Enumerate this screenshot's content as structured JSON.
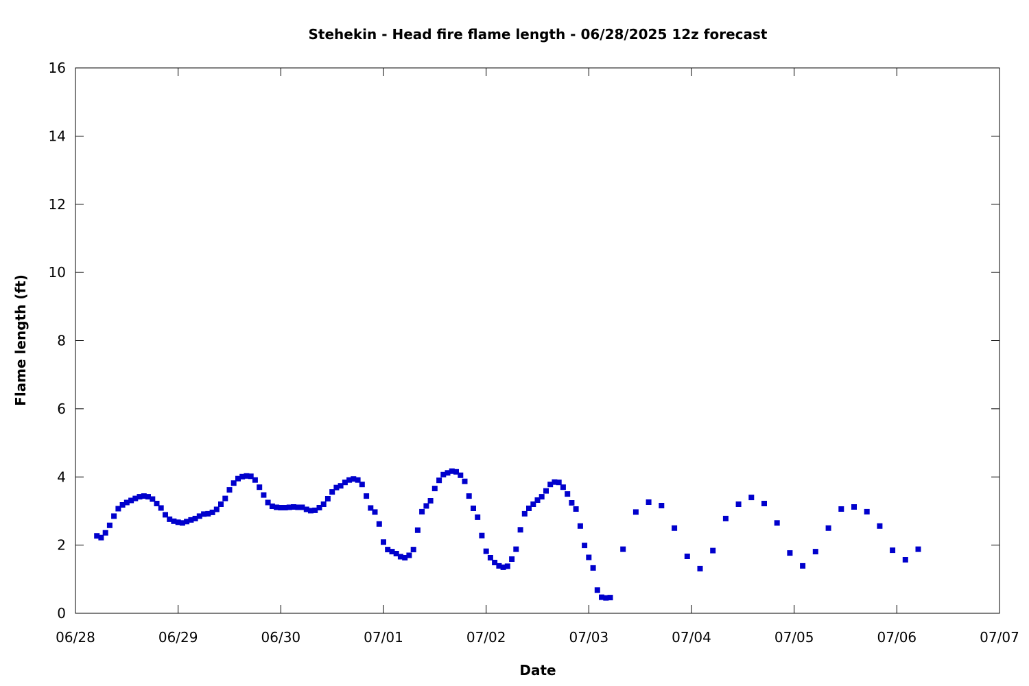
{
  "chart_data": {
    "type": "scatter",
    "title": "Stehekin - Head fire flame length - 06/28/2025 12z forecast",
    "xlabel": "Date",
    "ylabel": "Flame length (ft)",
    "xlim": [
      "06/28",
      "07/07"
    ],
    "ylim": [
      0,
      16
    ],
    "x_ticks": [
      "06/28",
      "06/29",
      "06/30",
      "07/01",
      "07/02",
      "07/03",
      "07/04",
      "07/05",
      "07/06",
      "07/07"
    ],
    "y_ticks": [
      "0",
      "2",
      "4",
      "6",
      "8",
      "10",
      "12",
      "14",
      "16"
    ],
    "grid": false,
    "marker_color": "#0000cc",
    "series": [
      {
        "x": [
          "2025-06-28T05:00",
          "2025-06-28T06:00",
          "2025-06-28T07:00",
          "2025-06-28T08:00",
          "2025-06-28T09:00",
          "2025-06-28T10:00",
          "2025-06-28T11:00",
          "2025-06-28T12:00",
          "2025-06-28T13:00",
          "2025-06-28T14:00",
          "2025-06-28T15:00",
          "2025-06-28T16:00",
          "2025-06-28T17:00",
          "2025-06-28T18:00",
          "2025-06-28T19:00",
          "2025-06-28T20:00",
          "2025-06-28T21:00",
          "2025-06-28T22:00",
          "2025-06-28T23:00",
          "2025-06-29T00:00",
          "2025-06-29T01:00",
          "2025-06-29T02:00",
          "2025-06-29T03:00",
          "2025-06-29T04:00",
          "2025-06-29T05:00",
          "2025-06-29T06:00",
          "2025-06-29T07:00",
          "2025-06-29T08:00",
          "2025-06-29T09:00",
          "2025-06-29T10:00",
          "2025-06-29T11:00",
          "2025-06-29T12:00",
          "2025-06-29T13:00",
          "2025-06-29T14:00",
          "2025-06-29T15:00",
          "2025-06-29T16:00",
          "2025-06-29T17:00",
          "2025-06-29T18:00",
          "2025-06-29T19:00",
          "2025-06-29T20:00",
          "2025-06-29T21:00",
          "2025-06-29T22:00",
          "2025-06-29T23:00",
          "2025-06-30T00:00",
          "2025-06-30T01:00",
          "2025-06-30T02:00",
          "2025-06-30T03:00",
          "2025-06-30T04:00",
          "2025-06-30T05:00",
          "2025-06-30T06:00",
          "2025-06-30T07:00",
          "2025-06-30T08:00",
          "2025-06-30T09:00",
          "2025-06-30T10:00",
          "2025-06-30T11:00",
          "2025-06-30T12:00",
          "2025-06-30T13:00",
          "2025-06-30T14:00",
          "2025-06-30T15:00",
          "2025-06-30T16:00",
          "2025-06-30T17:00",
          "2025-06-30T18:00",
          "2025-06-30T19:00",
          "2025-06-30T20:00",
          "2025-06-30T21:00",
          "2025-06-30T22:00",
          "2025-06-30T23:00",
          "2025-07-01T00:00",
          "2025-07-01T01:00",
          "2025-07-01T02:00",
          "2025-07-01T03:00",
          "2025-07-01T04:00",
          "2025-07-01T05:00",
          "2025-07-01T06:00",
          "2025-07-01T07:00",
          "2025-07-01T08:00",
          "2025-07-01T09:00",
          "2025-07-01T10:00",
          "2025-07-01T11:00",
          "2025-07-01T12:00",
          "2025-07-01T13:00",
          "2025-07-01T14:00",
          "2025-07-01T15:00",
          "2025-07-01T16:00",
          "2025-07-01T17:00",
          "2025-07-01T18:00",
          "2025-07-01T19:00",
          "2025-07-01T20:00",
          "2025-07-01T21:00",
          "2025-07-01T22:00",
          "2025-07-01T23:00",
          "2025-07-02T00:00",
          "2025-07-02T01:00",
          "2025-07-02T02:00",
          "2025-07-02T03:00",
          "2025-07-02T04:00",
          "2025-07-02T05:00",
          "2025-07-02T06:00",
          "2025-07-02T07:00",
          "2025-07-02T08:00",
          "2025-07-02T09:00",
          "2025-07-02T10:00",
          "2025-07-02T11:00",
          "2025-07-02T12:00",
          "2025-07-02T13:00",
          "2025-07-02T14:00",
          "2025-07-02T15:00",
          "2025-07-02T16:00",
          "2025-07-02T17:00",
          "2025-07-02T18:00",
          "2025-07-02T19:00",
          "2025-07-02T20:00",
          "2025-07-02T21:00",
          "2025-07-02T22:00",
          "2025-07-02T23:00",
          "2025-07-03T00:00",
          "2025-07-03T01:00",
          "2025-07-03T02:00",
          "2025-07-03T03:00",
          "2025-07-03T04:00",
          "2025-07-03T05:00",
          "2025-07-03T08:00",
          "2025-07-03T11:00",
          "2025-07-03T14:00",
          "2025-07-03T17:00",
          "2025-07-03T20:00",
          "2025-07-03T23:00",
          "2025-07-04T02:00",
          "2025-07-04T05:00",
          "2025-07-04T08:00",
          "2025-07-04T11:00",
          "2025-07-04T14:00",
          "2025-07-04T17:00",
          "2025-07-04T20:00",
          "2025-07-04T23:00",
          "2025-07-05T02:00",
          "2025-07-05T05:00",
          "2025-07-05T08:00",
          "2025-07-05T11:00",
          "2025-07-05T14:00",
          "2025-07-05T17:00",
          "2025-07-05T20:00",
          "2025-07-05T23:00",
          "2025-07-06T02:00",
          "2025-07-06T05:00"
        ],
        "values": [
          2.27,
          2.22,
          2.36,
          2.58,
          2.85,
          3.07,
          3.18,
          3.25,
          3.31,
          3.37,
          3.42,
          3.44,
          3.42,
          3.35,
          3.22,
          3.09,
          2.89,
          2.76,
          2.7,
          2.67,
          2.65,
          2.69,
          2.74,
          2.78,
          2.85,
          2.91,
          2.92,
          2.96,
          3.05,
          3.2,
          3.37,
          3.62,
          3.82,
          3.95,
          4.01,
          4.03,
          4.02,
          3.91,
          3.7,
          3.47,
          3.25,
          3.14,
          3.11,
          3.1,
          3.1,
          3.11,
          3.12,
          3.11,
          3.11,
          3.05,
          3.01,
          3.02,
          3.1,
          3.2,
          3.36,
          3.56,
          3.69,
          3.74,
          3.84,
          3.91,
          3.94,
          3.91,
          3.78,
          3.44,
          3.09,
          2.97,
          2.62,
          2.09,
          1.87,
          1.81,
          1.75,
          1.66,
          1.63,
          1.7,
          1.87,
          2.44,
          2.98,
          3.15,
          3.3,
          3.66,
          3.9,
          4.07,
          4.12,
          4.17,
          4.15,
          4.05,
          3.87,
          3.44,
          3.08,
          2.82,
          2.28,
          1.82,
          1.63,
          1.49,
          1.39,
          1.35,
          1.38,
          1.59,
          1.88,
          2.45,
          2.92,
          3.08,
          3.2,
          3.32,
          3.42,
          3.59,
          3.78,
          3.85,
          3.84,
          3.7,
          3.5,
          3.24,
          3.06,
          2.56,
          1.99,
          1.64,
          1.33,
          0.68,
          0.47,
          0.45,
          0.46,
          1.88,
          2.97,
          3.26,
          3.16,
          2.5,
          1.67,
          1.31,
          1.84,
          2.78,
          3.2,
          3.4,
          3.22,
          2.65,
          1.77,
          1.39,
          1.81,
          2.5,
          3.06,
          3.12,
          2.98,
          2.56,
          1.85,
          1.57,
          1.88
        ]
      }
    ]
  }
}
